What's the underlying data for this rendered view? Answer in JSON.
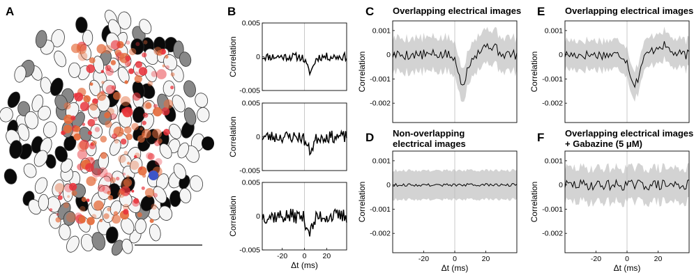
{
  "figure": {
    "panels": {
      "A": {
        "label": "A",
        "scale_bar": true
      },
      "B": {
        "label": "B"
      },
      "C": {
        "label": "C",
        "title_lines": [
          "Overlapping electrical images"
        ]
      },
      "D": {
        "label": "D",
        "title_lines": [
          "Non-overlapping",
          "electrical images"
        ]
      },
      "E": {
        "label": "E",
        "title_lines": [
          "Overlapping electrical images"
        ]
      },
      "F": {
        "label": "F",
        "title_lines": [
          "Overlapping electrical images",
          "+ Gabazine (5 μM)"
        ]
      }
    },
    "colors": {
      "trace": "#000000",
      "band": "#d3d3d3",
      "zero_line": "#bbbbbb",
      "cell_red": "#e8333b",
      "cell_orange": "#e46a3a",
      "cell_blue": "#3d55c8"
    }
  },
  "chart_data": [
    {
      "panel": "B",
      "type": "line",
      "row": 1,
      "ylabel": "Correlation",
      "xlabel": "",
      "xlim": [
        -38,
        38
      ],
      "ylim": [
        -0.005,
        0.005
      ],
      "yticks": [
        0.005,
        0,
        -0.005
      ],
      "ytick_labels": [
        "0.005",
        "0",
        "-0.005"
      ],
      "xticks": [],
      "xtick_labels": [],
      "has_band": false,
      "dip_depth": 0.0022,
      "noise": 0.0006,
      "seed": 11
    },
    {
      "panel": "B",
      "type": "line",
      "row": 2,
      "ylabel": "Correlation",
      "xlabel": "",
      "xlim": [
        -38,
        38
      ],
      "ylim": [
        -0.005,
        0.005
      ],
      "yticks": [
        0.005,
        0,
        -0.005
      ],
      "ytick_labels": [
        "0.005",
        "0",
        "-0.005"
      ],
      "xticks": [],
      "xtick_labels": [],
      "has_band": false,
      "dip_depth": 0.002,
      "noise": 0.0009,
      "seed": 23
    },
    {
      "panel": "B",
      "type": "line",
      "row": 3,
      "ylabel": "Correlation",
      "xlabel": "Δt (ms)",
      "xlim": [
        -38,
        38
      ],
      "ylim": [
        -0.005,
        0.005
      ],
      "yticks": [
        0.005,
        0,
        -0.005
      ],
      "ytick_labels": [
        "0.005",
        "0",
        "-0.005"
      ],
      "xticks": [
        -20,
        0,
        20
      ],
      "xtick_labels": [
        "-20",
        "0",
        "20"
      ],
      "has_band": false,
      "dip_depth": 0.0022,
      "noise": 0.0011,
      "seed": 37
    },
    {
      "panel": "C",
      "type": "line",
      "ylabel": "Correlation",
      "xlabel": "",
      "xlim": [
        -40,
        40
      ],
      "ylim": [
        -0.0028,
        0.0014
      ],
      "yticks": [
        0.001,
        0,
        -0.001,
        -0.002
      ],
      "ytick_labels": [
        "0.001",
        "0",
        "-0.001",
        "-0.002"
      ],
      "xticks": [],
      "xtick_labels": [],
      "has_band": true,
      "band_width": 0.0007,
      "dip_depth": 0.0011,
      "noise": 0.00022,
      "seed": 5
    },
    {
      "panel": "D",
      "type": "line",
      "ylabel": "Correlation",
      "xlabel": "Δt (ms)",
      "xlim": [
        -40,
        40
      ],
      "ylim": [
        -0.0028,
        0.0014
      ],
      "yticks": [
        0.001,
        0,
        -0.001,
        -0.002
      ],
      "ytick_labels": [
        "0.001",
        "0",
        "-0.001",
        "-0.002"
      ],
      "xticks": [
        -20,
        0,
        20
      ],
      "xtick_labels": [
        "-20",
        "0",
        "20"
      ],
      "has_band": true,
      "band_width": 0.0006,
      "dip_depth": 0.0,
      "noise": 6e-05,
      "seed": 9
    },
    {
      "panel": "E",
      "type": "line",
      "ylabel": "Correlation",
      "xlabel": "",
      "xlim": [
        -40,
        40
      ],
      "ylim": [
        -0.0028,
        0.0014
      ],
      "yticks": [
        0.001,
        0,
        -0.001,
        -0.002
      ],
      "ytick_labels": [
        "0.001",
        "0",
        "-0.001",
        "-0.002"
      ],
      "xticks": [],
      "xtick_labels": [],
      "has_band": true,
      "band_width": 0.0006,
      "dip_depth": 0.0012,
      "noise": 0.0002,
      "seed": 17
    },
    {
      "panel": "F",
      "type": "line",
      "ylabel": "Correlation",
      "xlabel": "Δt (ms)",
      "xlim": [
        -40,
        40
      ],
      "ylim": [
        -0.0028,
        0.0014
      ],
      "yticks": [
        0.001,
        0,
        -0.001,
        -0.002
      ],
      "ytick_labels": [
        "0.001",
        "0",
        "-0.001",
        "-0.002"
      ],
      "xticks": [
        -20,
        0,
        20
      ],
      "xtick_labels": [
        "-20",
        "0",
        "20"
      ],
      "has_band": true,
      "band_width": 0.0007,
      "dip_depth": 0.0,
      "noise": 0.00022,
      "seed": 29
    }
  ]
}
